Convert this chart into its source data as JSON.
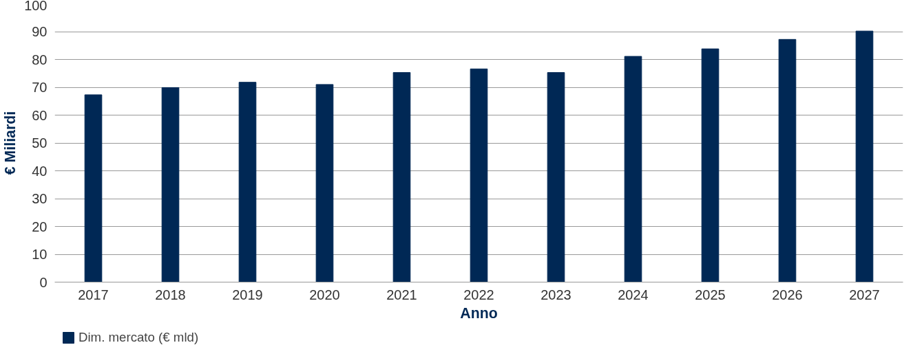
{
  "chart_data": {
    "type": "bar",
    "xlabel": "Anno",
    "ylabel": "€ Miliardi",
    "categories": [
      "2017",
      "2018",
      "2019",
      "2020",
      "2021",
      "2022",
      "2023",
      "2024",
      "2025",
      "2026",
      "2027"
    ],
    "series": [
      {
        "name": "Dim. mercato (€ mld)",
        "color": "#002855",
        "values": [
          67.3,
          69.9,
          71.8,
          71,
          75.3,
          76.6,
          75.3,
          81.1,
          83.8,
          87.2,
          90.2
        ]
      }
    ],
    "ylim": [
      0,
      100
    ],
    "yticks": [
      0,
      10,
      20,
      30,
      40,
      50,
      60,
      70,
      80,
      90,
      100
    ],
    "grid": "y",
    "legend": "bottom"
  }
}
